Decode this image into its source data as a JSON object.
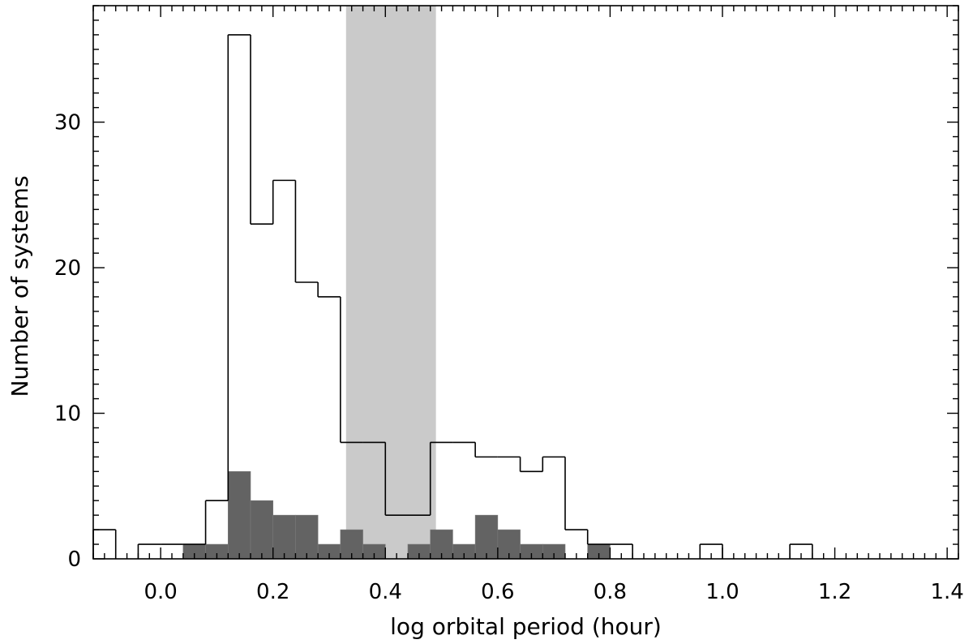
{
  "chart_data": {
    "type": "bar",
    "title": "",
    "xlabel": "log orbital period (hour)",
    "ylabel": "Number of systems",
    "xlim": [
      -0.12,
      1.42
    ],
    "ylim": [
      0,
      38
    ],
    "x_ticks": [
      0.0,
      0.2,
      0.4,
      0.6,
      0.8,
      1.0,
      1.2,
      1.4
    ],
    "x_tick_labels": [
      "0.0",
      "0.2",
      "0.4",
      "0.6",
      "0.8",
      "1.0",
      "1.2",
      "1.4"
    ],
    "y_ticks": [
      0,
      10,
      20,
      30
    ],
    "y_tick_labels": [
      "0",
      "10",
      "20",
      "30"
    ],
    "bin_width": 0.04,
    "shaded_region": {
      "x_range": [
        0.33,
        0.49
      ],
      "color": "#cacaca"
    },
    "series": [
      {
        "style": "outline-step",
        "color": "#000000",
        "bin_starts": [
          -0.12,
          -0.08,
          -0.04,
          0.0,
          0.04,
          0.08,
          0.12,
          0.16,
          0.2,
          0.24,
          0.28,
          0.32,
          0.36,
          0.4,
          0.44,
          0.48,
          0.52,
          0.56,
          0.6,
          0.64,
          0.68,
          0.72,
          0.76,
          0.8,
          0.84,
          0.88,
          0.92,
          0.96,
          1.0,
          1.04,
          1.08,
          1.12,
          1.16,
          1.2
        ],
        "values": [
          2,
          0,
          1,
          1,
          1,
          4,
          36,
          23,
          26,
          19,
          18,
          8,
          8,
          3,
          3,
          8,
          8,
          7,
          7,
          6,
          7,
          2,
          1,
          1,
          0,
          0,
          0,
          1,
          0,
          0,
          0,
          1,
          0,
          0
        ]
      },
      {
        "style": "filled",
        "color": "#636363",
        "bin_starts": [
          0.04,
          0.08,
          0.12,
          0.16,
          0.2,
          0.24,
          0.28,
          0.32,
          0.36,
          0.4,
          0.44,
          0.48,
          0.52,
          0.56,
          0.6,
          0.64,
          0.68,
          0.72,
          0.76
        ],
        "values": [
          1,
          1,
          6,
          4,
          3,
          3,
          1,
          2,
          1,
          0,
          1,
          2,
          1,
          3,
          2,
          1,
          1,
          0,
          1
        ]
      }
    ]
  }
}
